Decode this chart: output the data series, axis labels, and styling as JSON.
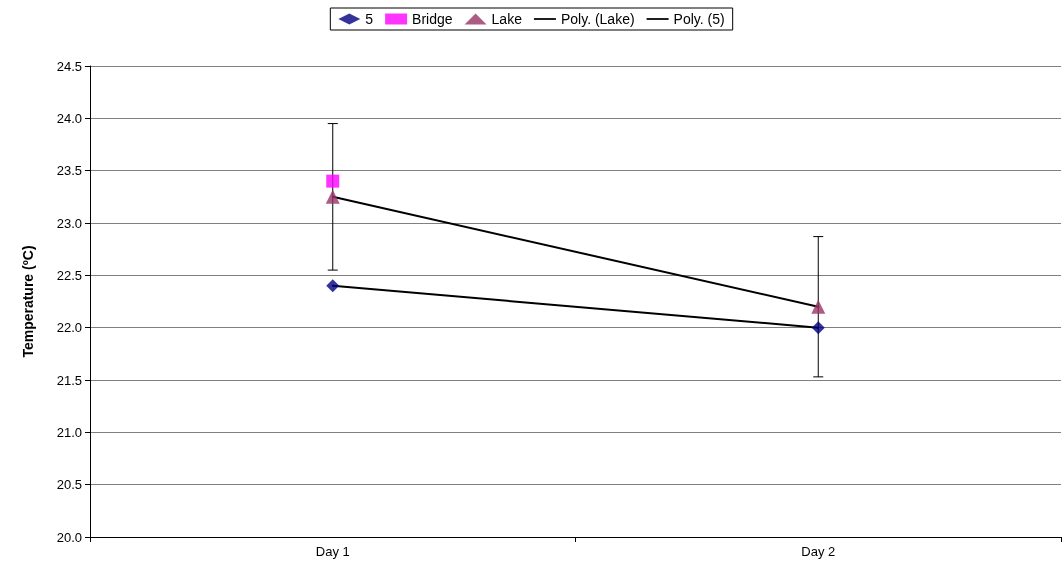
{
  "chart_data": {
    "type": "scatter",
    "ylabel": "Temperature (ºC)",
    "categories": [
      "Day 1",
      "Day 2"
    ],
    "ylim": [
      20.0,
      24.5
    ],
    "yticks": [
      {
        "value": 20,
        "label": "20.0"
      },
      {
        "value": 20.5,
        "label": "20.5"
      },
      {
        "value": 21,
        "label": "21.0"
      },
      {
        "value": 21.5,
        "label": "21.5"
      },
      {
        "value": 22,
        "label": "22.0"
      },
      {
        "value": 22.5,
        "label": "22.5"
      },
      {
        "value": 23,
        "label": "23.0"
      },
      {
        "value": 23.5,
        "label": "23.5"
      },
      {
        "value": 24,
        "label": "24.0"
      },
      {
        "value": 24.5,
        "label": "24.5"
      }
    ],
    "grid": "y",
    "legend": "top",
    "series": [
      {
        "name": "5",
        "marker": "diamond",
        "color": "#000080",
        "values": [
          22.4,
          22.0
        ]
      },
      {
        "name": "Bridge",
        "marker": "square",
        "color": "#ff00ff",
        "values": [
          23.4,
          null
        ]
      },
      {
        "name": "Lake",
        "marker": "triangle",
        "color": "#993366",
        "values": [
          23.25,
          22.2
        ],
        "errors": [
          0.7,
          0.67
        ]
      },
      {
        "name": "Poly. (Lake)",
        "type": "line",
        "marker": "none",
        "color": "#000000",
        "x": [
          "Day 1",
          "Day 2"
        ],
        "values": [
          23.25,
          22.2
        ]
      },
      {
        "name": "Poly. (5)",
        "type": "line",
        "marker": "none",
        "color": "#000000",
        "x": [
          "Day 1",
          "Day 2"
        ],
        "values": [
          22.4,
          22.0
        ]
      }
    ]
  }
}
